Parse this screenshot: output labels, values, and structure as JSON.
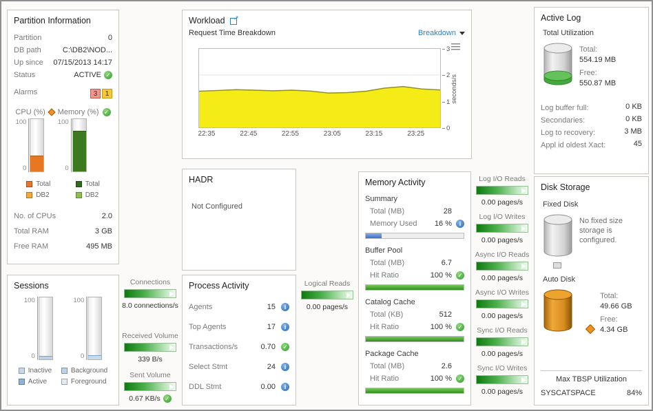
{
  "partition_info": {
    "title": "Partition Information",
    "rows": [
      {
        "label": "Partition",
        "value": "0"
      },
      {
        "label": "DB path",
        "value": "C:\\DB2\\NOD..."
      },
      {
        "label": "Up since",
        "value": "07/15/2013 14:17"
      },
      {
        "label": "Status",
        "value": "ACTIVE"
      }
    ],
    "alarms_label": "Alarms",
    "alarms": {
      "error_count": "3",
      "warning_count": "1"
    },
    "cpu_gauge": {
      "label": "CPU (%)",
      "max": "100",
      "min": "0",
      "fill_pct": 30,
      "color": "#e87722"
    },
    "memory_gauge": {
      "label": "Memory (%)",
      "max": "100",
      "min": "0",
      "fill_pct": 78,
      "color": "#3d7a1f"
    },
    "cpu_legend": [
      {
        "label": "Total",
        "color": "#e8762c"
      },
      {
        "label": "DB2",
        "color": "#f3a83b"
      }
    ],
    "memory_legend": [
      {
        "label": "Total",
        "color": "#2f6b1c"
      },
      {
        "label": "DB2",
        "color": "#8dbf4c"
      }
    ],
    "stats": [
      {
        "label": "No. of CPUs",
        "value": "2.0"
      },
      {
        "label": "Total RAM",
        "value": "3 GB"
      },
      {
        "label": "Free RAM",
        "value": "495 MB"
      }
    ]
  },
  "sessions": {
    "title": "Sessions",
    "left_gauge": {
      "max": "100",
      "min": "0",
      "fill_pct": 6,
      "color": "#b9d2ea"
    },
    "right_gauge": {
      "max": "100",
      "min": "0",
      "fill_pct": 7,
      "color": "#c9daee"
    },
    "left_legend": [
      {
        "label": "Inactive",
        "color": "#c5d9ee"
      },
      {
        "label": "Active",
        "color": "#8fb4d9"
      }
    ],
    "right_legend": [
      {
        "label": "Background",
        "color": "#bcd2ea"
      },
      {
        "label": "Foreground",
        "color": "#e2ebf4"
      }
    ]
  },
  "workload": {
    "title": "Workload",
    "subtitle": "Request Time Breakdown",
    "dropdown_label": "Breakdown",
    "chart_data": {
      "type": "area",
      "x_ticks": [
        "22:35",
        "22:45",
        "22:55",
        "23:05",
        "23:15",
        "23:25"
      ],
      "y_ticks": [
        "3",
        "2",
        "1",
        "0"
      ],
      "ylabel": "seconds/s",
      "ylim": [
        0,
        3
      ],
      "series": [
        {
          "name": "Request Time",
          "values": [
            1.38,
            1.41,
            1.44,
            1.42,
            1.4,
            1.42,
            1.39,
            1.31,
            1.33,
            1.38,
            1.5,
            1.56,
            1.47,
            1.43
          ]
        }
      ],
      "fill_color": "#f5eb17",
      "line_color": "#8f8c2c",
      "grid": true,
      "legend_position": "none"
    }
  },
  "hadr": {
    "title": "HADR",
    "status": "Not Configured"
  },
  "process_activity": {
    "title": "Process Activity",
    "rows": [
      {
        "label": "Agents",
        "value": "15",
        "icon": "info"
      },
      {
        "label": "Top Agents",
        "value": "17",
        "icon": "info"
      },
      {
        "label": "Transactions/s",
        "value": "0.70",
        "icon": "check"
      },
      {
        "label": "Select Stmt",
        "value": "24",
        "icon": "info"
      },
      {
        "label": "DDL Stmt",
        "value": "0.00",
        "icon": "info"
      }
    ]
  },
  "memory_activity": {
    "title": "Memory Activity",
    "sections": [
      {
        "header": "Summary",
        "row1": {
          "label": "Total (MB)",
          "value": "28"
        },
        "row2": {
          "label": "Memory Used",
          "value": "16 %"
        },
        "bar_pct": 16
      },
      {
        "header": "Buffer Pool",
        "row1": {
          "label": "Total (MB)",
          "value": "6.7"
        },
        "row2": {
          "label": "Hit Ratio",
          "value": "100 %"
        },
        "bar_pct": 100
      },
      {
        "header": "Catalog Cache",
        "row1": {
          "label": "Total (KB)",
          "value": "512"
        },
        "row2": {
          "label": "Hit Ratio",
          "value": "100 %"
        },
        "bar_pct": 100
      },
      {
        "header": "Package Cache",
        "row1": {
          "label": "Total (MB)",
          "value": "2.6"
        },
        "row2": {
          "label": "Hit Ratio",
          "value": "100 %"
        },
        "bar_pct": 100
      }
    ]
  },
  "meters": {
    "connections": {
      "label": "Connections",
      "value": "8.0 connections/s"
    },
    "received_volume": {
      "label": "Received Volume",
      "value": "339 B/s"
    },
    "sent_volume": {
      "label": "Sent Volume",
      "value": "0.67 KB/s"
    },
    "logical_reads": {
      "label": "Logical Reads",
      "value": "0.00 pages/s"
    },
    "log_io_reads": {
      "label": "Log I/O Reads",
      "value": "0.00 pages/s"
    },
    "log_io_writes": {
      "label": "Log I/O Writes",
      "value": "0.00 pages/s"
    },
    "async_io_reads": {
      "label": "Async I/O Reads",
      "value": "0.00 pages/s"
    },
    "async_io_writes": {
      "label": "Async I/O Writes",
      "value": "0.00 pages/s"
    },
    "sync_io_reads": {
      "label": "Sync I/O Reads",
      "value": "0.00 pages/s"
    },
    "sync_io_writes": {
      "label": "Sync I/O Writes",
      "value": "0.00 pages/s"
    }
  },
  "active_log": {
    "title": "Active Log",
    "subtitle": "Total Utilization",
    "total_label": "Total:",
    "total_value": "554.19 MB",
    "free_label": "Free:",
    "free_value": "550.87 MB",
    "rows": [
      {
        "label": "Log buffer full:",
        "value": "0 KB"
      },
      {
        "label": "Secondaries:",
        "value": "0 KB"
      },
      {
        "label": "Log to recovery:",
        "value": "3 MB"
      },
      {
        "label": "Appl id oldest Xact:",
        "value": "45"
      }
    ]
  },
  "disk_storage": {
    "title": "Disk Storage",
    "fixed_disk": {
      "label": "Fixed Disk",
      "message": "No fixed size storage is configured."
    },
    "auto_disk": {
      "label": "Auto Disk",
      "total_label": "Total:",
      "total_value": "49.66 GB",
      "free_label": "Free:",
      "free_value": "4.34 GB"
    },
    "max_tbsp": {
      "header": "Max TBSP Utilization",
      "name": "SYSCATSPACE",
      "value": "84%"
    }
  },
  "colors": {
    "accent_blue": "#2f80c3",
    "ok_green": "#3aa63a",
    "warn_orange": "#f09122",
    "alarm_red": "#f2968c",
    "alarm_yellow": "#f6c63d",
    "chart_fill_yellow": "#f5eb17"
  }
}
